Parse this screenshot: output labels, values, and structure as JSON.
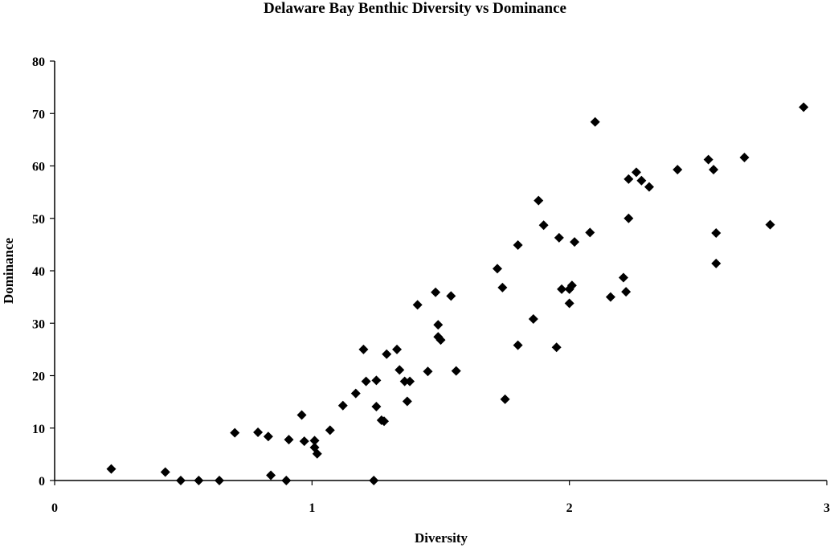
{
  "chart_data": {
    "type": "scatter",
    "title": "Delaware Bay Benthic Diversity vs Dominance",
    "xlabel": "Diversity",
    "ylabel": "Dominance",
    "xlim": [
      0,
      3
    ],
    "ylim": [
      0,
      80
    ],
    "xticks": [
      0,
      1,
      2,
      3
    ],
    "yticks": [
      0,
      10,
      20,
      30,
      40,
      50,
      60,
      70,
      80
    ],
    "grid": false,
    "legend": "none",
    "marker": "diamond",
    "marker_color": "#000000",
    "series": [
      {
        "points": [
          [
            0.22,
            2.2
          ],
          [
            0.43,
            1.6
          ],
          [
            0.49,
            0.0
          ],
          [
            0.56,
            0.0
          ],
          [
            0.64,
            0.0
          ],
          [
            0.7,
            9.1
          ],
          [
            0.79,
            9.2
          ],
          [
            0.83,
            8.4
          ],
          [
            0.84,
            1.0
          ],
          [
            0.9,
            0.0
          ],
          [
            0.91,
            7.8
          ],
          [
            0.96,
            12.5
          ],
          [
            0.97,
            7.5
          ],
          [
            1.01,
            7.6
          ],
          [
            1.01,
            6.3
          ],
          [
            1.02,
            5.1
          ],
          [
            1.07,
            9.6
          ],
          [
            1.12,
            14.3
          ],
          [
            1.17,
            16.6
          ],
          [
            1.2,
            25.0
          ],
          [
            1.21,
            18.9
          ],
          [
            1.24,
            0.0
          ],
          [
            1.25,
            19.1
          ],
          [
            1.25,
            14.1
          ],
          [
            1.27,
            11.5
          ],
          [
            1.28,
            11.3
          ],
          [
            1.29,
            24.1
          ],
          [
            1.33,
            25.0
          ],
          [
            1.34,
            21.1
          ],
          [
            1.36,
            18.9
          ],
          [
            1.37,
            15.1
          ],
          [
            1.38,
            18.9
          ],
          [
            1.41,
            33.5
          ],
          [
            1.45,
            20.8
          ],
          [
            1.48,
            35.9
          ],
          [
            1.49,
            29.7
          ],
          [
            1.49,
            27.4
          ],
          [
            1.5,
            26.8
          ],
          [
            1.54,
            35.2
          ],
          [
            1.56,
            20.9
          ],
          [
            1.72,
            40.4
          ],
          [
            1.74,
            36.8
          ],
          [
            1.75,
            15.5
          ],
          [
            1.8,
            25.8
          ],
          [
            1.8,
            44.9
          ],
          [
            1.86,
            30.8
          ],
          [
            1.88,
            53.4
          ],
          [
            1.9,
            48.7
          ],
          [
            1.95,
            25.4
          ],
          [
            1.96,
            46.3
          ],
          [
            1.97,
            36.5
          ],
          [
            2.0,
            36.5
          ],
          [
            2.0,
            33.8
          ],
          [
            2.01,
            37.2
          ],
          [
            2.02,
            45.5
          ],
          [
            2.08,
            47.3
          ],
          [
            2.1,
            68.4
          ],
          [
            2.16,
            35.0
          ],
          [
            2.21,
            38.7
          ],
          [
            2.22,
            36.0
          ],
          [
            2.23,
            50.0
          ],
          [
            2.23,
            57.5
          ],
          [
            2.26,
            58.8
          ],
          [
            2.28,
            57.2
          ],
          [
            2.31,
            56.0
          ],
          [
            2.42,
            59.3
          ],
          [
            2.54,
            61.2
          ],
          [
            2.56,
            59.3
          ],
          [
            2.57,
            47.2
          ],
          [
            2.57,
            41.4
          ],
          [
            2.68,
            61.6
          ],
          [
            2.78,
            48.8
          ],
          [
            2.91,
            71.2
          ]
        ]
      }
    ]
  }
}
